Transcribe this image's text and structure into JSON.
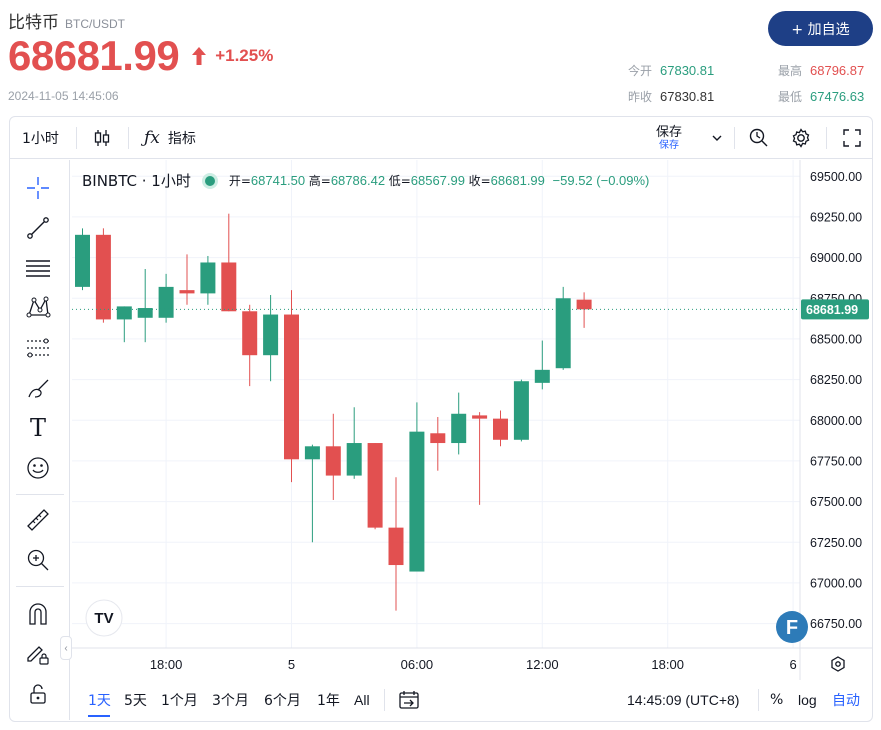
{
  "header": {
    "name": "比特币",
    "symbol": "BTC/USDT",
    "price": "68681.99",
    "change": "+1.25%",
    "timestamp": "2024-11-05 14:45:06",
    "add_button": "+ 加自选",
    "stats": {
      "open_label": "今开",
      "open": "67830.81",
      "high_label": "最高",
      "high": "68796.87",
      "prev_close_label": "昨收",
      "prev_close": "67830.81",
      "low_label": "最低",
      "low": "67476.63"
    }
  },
  "colors": {
    "up": "#2a9d7e",
    "down": "#e25050",
    "accent": "#2962ff",
    "button": "#1e3f86"
  },
  "toolbar": {
    "interval": "1小时",
    "indicators": "指标",
    "save": "保存",
    "save_sub": "保存",
    "icons": [
      "candles-icon",
      "fx-icon",
      "chevron-down-icon",
      "alert-icon",
      "gear-icon",
      "fullscreen-icon"
    ]
  },
  "left_tools": [
    "crosshair-icon",
    "trend-line-icon",
    "horizontal-lines-icon",
    "pattern-icon",
    "fib-icon",
    "brush-icon",
    "text-icon",
    "emoji-icon",
    "ruler-icon",
    "zoom-in-icon",
    "magnet-icon",
    "lock-pencil-icon",
    "lock-icon"
  ],
  "legend": {
    "title": "BINBTC · 1小时",
    "open_label": "开=",
    "open": "68741.50",
    "high_label": "高=",
    "high": "68786.42",
    "low_label": "低=",
    "low": "68567.99",
    "close_label": "收=",
    "close": "68681.99",
    "change": "−59.52 (−0.09%)"
  },
  "chart_data": {
    "type": "candlestick",
    "ylim": [
      66600,
      69600
    ],
    "y_ticks": [
      "69500.00",
      "69250.00",
      "69000.00",
      "68750.00",
      "68500.00",
      "68250.00",
      "68000.00",
      "67750.00",
      "67500.00",
      "67250.00",
      "67000.00",
      "66750.00"
    ],
    "y_tick_values": [
      69500,
      69250,
      69000,
      68750,
      68500,
      68250,
      68000,
      67750,
      67500,
      67250,
      67000,
      66750
    ],
    "x_ticks": [
      {
        "label": "18:00",
        "at": 4
      },
      {
        "label": "5",
        "at": 10
      },
      {
        "label": "06:00",
        "at": 16
      },
      {
        "label": "12:00",
        "at": 22
      },
      {
        "label": "18:00",
        "at": 28
      },
      {
        "label": "6",
        "at": 34
      }
    ],
    "last_price": "68681.99",
    "last_value": 68681.99,
    "candles": [
      {
        "o": 68820,
        "h": 69180,
        "l": 68800,
        "c": 69140
      },
      {
        "o": 69140,
        "h": 69180,
        "l": 68600,
        "c": 68620
      },
      {
        "o": 68620,
        "h": 68700,
        "l": 68480,
        "c": 68700
      },
      {
        "o": 68630,
        "h": 68930,
        "l": 68480,
        "c": 68690
      },
      {
        "o": 68630,
        "h": 68900,
        "l": 68600,
        "c": 68820
      },
      {
        "o": 68800,
        "h": 69020,
        "l": 68710,
        "c": 68780
      },
      {
        "o": 68780,
        "h": 69010,
        "l": 68710,
        "c": 68970
      },
      {
        "o": 68970,
        "h": 69270,
        "l": 68670,
        "c": 68670
      },
      {
        "o": 68670,
        "h": 68710,
        "l": 68210,
        "c": 68400
      },
      {
        "o": 68400,
        "h": 68770,
        "l": 68240,
        "c": 68650
      },
      {
        "o": 68650,
        "h": 68800,
        "l": 67620,
        "c": 67760
      },
      {
        "o": 67760,
        "h": 67850,
        "l": 67250,
        "c": 67840
      },
      {
        "o": 67840,
        "h": 68040,
        "l": 67510,
        "c": 67660
      },
      {
        "o": 67660,
        "h": 68080,
        "l": 67640,
        "c": 67860
      },
      {
        "o": 67860,
        "h": 67860,
        "l": 67330,
        "c": 67340
      },
      {
        "o": 67340,
        "h": 67650,
        "l": 66830,
        "c": 67110
      },
      {
        "o": 67070,
        "h": 68110,
        "l": 67070,
        "c": 67930
      },
      {
        "o": 67920,
        "h": 68020,
        "l": 67690,
        "c": 67860
      },
      {
        "o": 67860,
        "h": 68170,
        "l": 67790,
        "c": 68040
      },
      {
        "o": 68030,
        "h": 68050,
        "l": 67480,
        "c": 68010
      },
      {
        "o": 68010,
        "h": 68060,
        "l": 67840,
        "c": 67880
      },
      {
        "o": 67880,
        "h": 68250,
        "l": 67870,
        "c": 68240
      },
      {
        "o": 68230,
        "h": 68490,
        "l": 68190,
        "c": 68310
      },
      {
        "o": 68320,
        "h": 68820,
        "l": 68310,
        "c": 68750
      },
      {
        "o": 68741.5,
        "h": 68786.42,
        "l": 68567.99,
        "c": 68681.99
      }
    ]
  },
  "bottom_bar": {
    "ranges": [
      "1天",
      "5天",
      "1个月",
      "3个月",
      "6个月",
      "1年",
      "All"
    ],
    "active_range": "1天",
    "time": "14:45:09 (UTC+8)",
    "percent": "%",
    "log": "log",
    "auto": "自动"
  },
  "watermark": "TV",
  "badge": "F"
}
